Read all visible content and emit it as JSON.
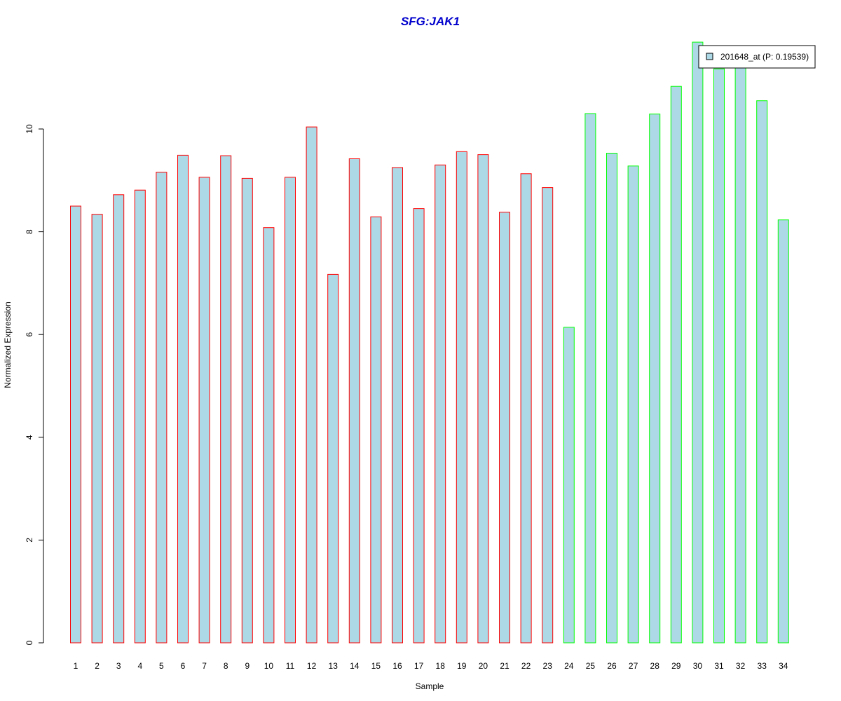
{
  "chart_data": {
    "type": "bar",
    "title": "SFG:JAK1",
    "xlabel": "Sample",
    "ylabel": "Normalized Expression",
    "ylim": [
      0,
      11.7
    ],
    "yticks": [
      0,
      2,
      4,
      6,
      8,
      10
    ],
    "grid": false,
    "legend": {
      "position": "top-right",
      "entries": [
        "201648_at (P: 0.19539)"
      ]
    },
    "categories": [
      "1",
      "2",
      "3",
      "4",
      "5",
      "6",
      "7",
      "8",
      "9",
      "10",
      "11",
      "12",
      "13",
      "14",
      "15",
      "16",
      "17",
      "18",
      "19",
      "20",
      "21",
      "22",
      "23",
      "24",
      "25",
      "26",
      "27",
      "28",
      "29",
      "30",
      "31",
      "32",
      "33",
      "34"
    ],
    "series": [
      {
        "name": "201648_at (P: 0.19539)",
        "values": [
          8.5,
          8.34,
          8.72,
          8.81,
          9.16,
          9.49,
          9.06,
          9.48,
          9.04,
          8.08,
          9.06,
          10.04,
          7.17,
          9.42,
          8.29,
          9.25,
          8.45,
          9.3,
          9.56,
          9.5,
          8.38,
          9.13,
          8.86,
          6.14,
          10.3,
          9.53,
          9.28,
          10.29,
          10.83,
          11.69,
          11.17,
          11.29,
          10.55,
          8.23
        ],
        "group": [
          "red",
          "red",
          "red",
          "red",
          "red",
          "red",
          "red",
          "red",
          "red",
          "red",
          "red",
          "red",
          "red",
          "red",
          "red",
          "red",
          "red",
          "red",
          "red",
          "red",
          "red",
          "red",
          "red",
          "green",
          "green",
          "green",
          "green",
          "green",
          "green",
          "green",
          "green",
          "green",
          "green",
          "green"
        ]
      }
    ],
    "colors": {
      "bar_fill": "#add8e6",
      "group_red": "#ff0000",
      "group_green": "#00ff00",
      "title": "#0000cd",
      "axis": "#000000"
    }
  }
}
